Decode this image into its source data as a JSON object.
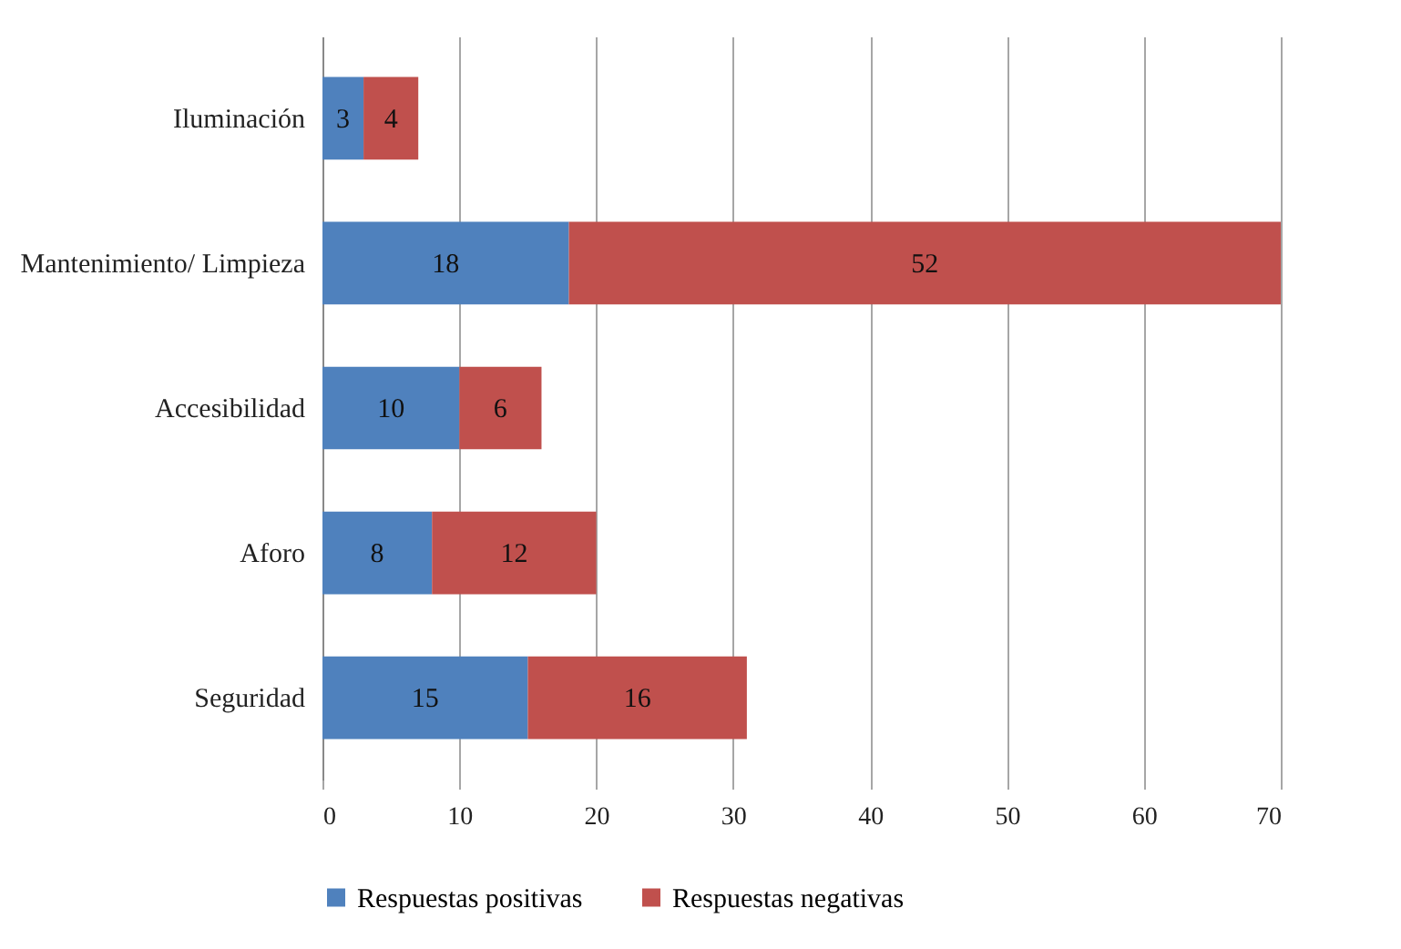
{
  "chart_data": {
    "type": "bar",
    "orientation": "horizontal",
    "stacked": true,
    "categories": [
      "Iluminación",
      "Mantenimiento/ Limpieza",
      "Accesibilidad",
      "Aforo",
      "Seguridad"
    ],
    "series": [
      {
        "name": "Respuestas positivas",
        "color": "#4f81bd",
        "values": [
          3,
          18,
          10,
          8,
          15
        ]
      },
      {
        "name": "Respuestas negativas",
        "color": "#c0504d",
        "values": [
          4,
          52,
          6,
          12,
          16
        ]
      }
    ],
    "xlim": [
      0,
      70
    ],
    "xticks": [
      0,
      10,
      20,
      30,
      40,
      50,
      60,
      70
    ],
    "grid": "x",
    "legend": "bottom",
    "data_labels": true
  }
}
